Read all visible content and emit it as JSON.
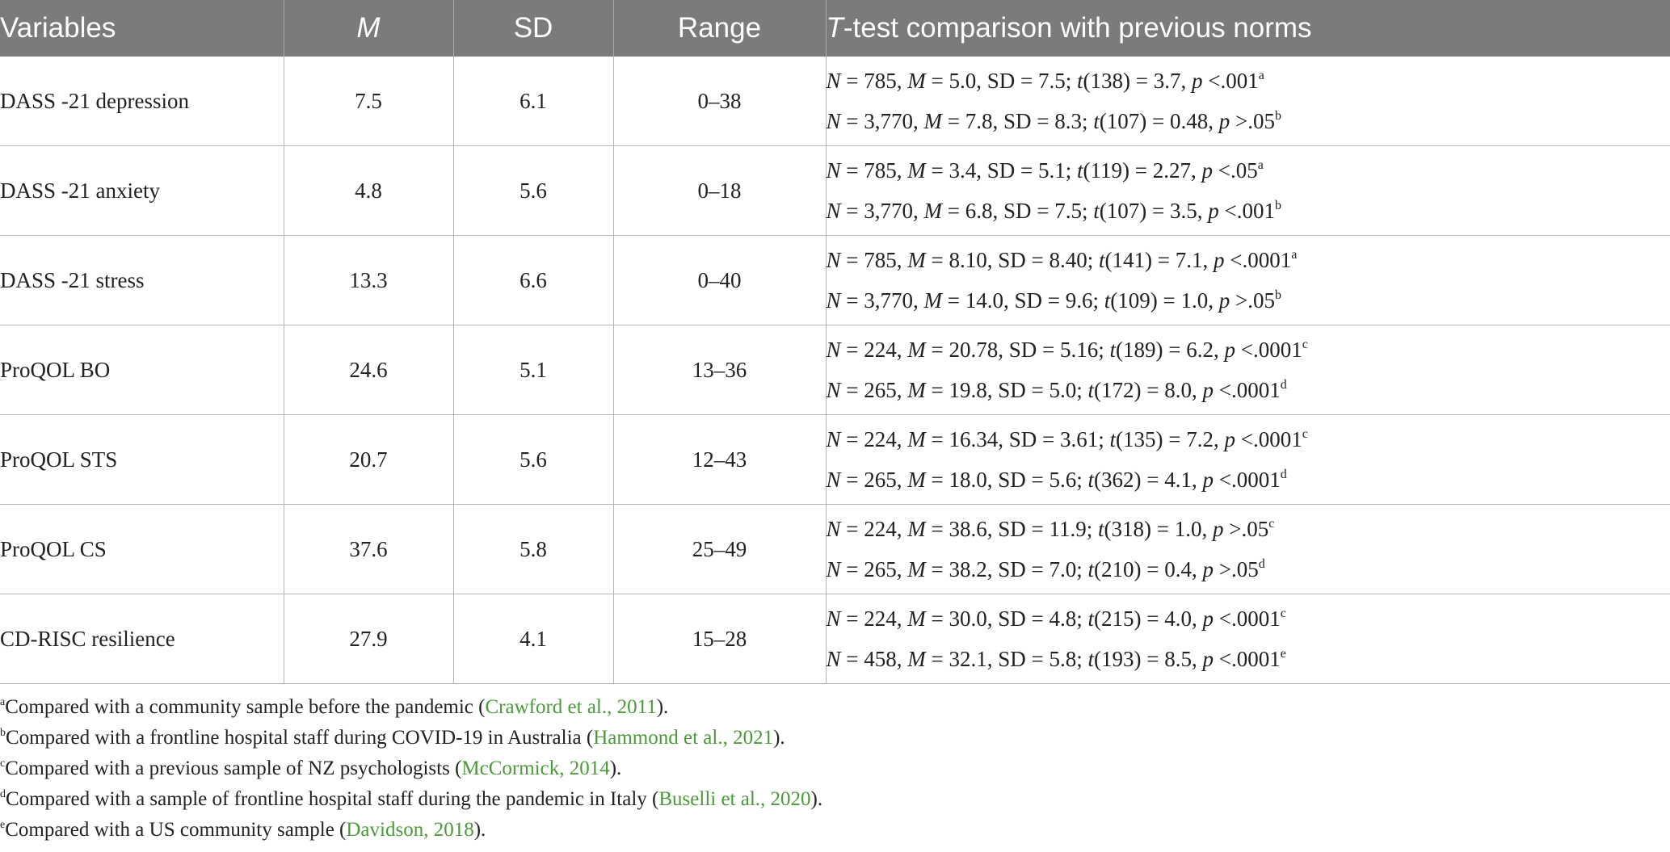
{
  "table": {
    "headers": {
      "variables": "Variables",
      "m": "M",
      "sd": "SD",
      "range": "Range",
      "comparison_italic": "T",
      "comparison_rest": "-test comparison with previous norms"
    },
    "rows": [
      {
        "variable": "DASS -21 depression",
        "m": "7.5",
        "sd": "6.1",
        "range": "0–38",
        "c1": {
          "n": "785",
          "mv": "5.0",
          "sd": "7.5",
          "df": "138",
          "tv": "3.7",
          "pp": "<.001",
          "sup": "a"
        },
        "c2": {
          "n": "3,770",
          "mv": "7.8",
          "sd": "8.3",
          "df": "107",
          "tv": "0.48",
          "pp": ">.05",
          "sup": "b"
        }
      },
      {
        "variable": "DASS -21 anxiety",
        "m": "4.8",
        "sd": "5.6",
        "range": "0–18",
        "c1": {
          "n": "785",
          "mv": "3.4",
          "sd": "5.1",
          "df": "119",
          "tv": "2.27",
          "pp": "<.05",
          "sup": "a"
        },
        "c2": {
          "n": "3,770",
          "mv": "6.8",
          "sd": "7.5",
          "df": "107",
          "tv": "3.5",
          "pp": "<.001",
          "sup": "b"
        }
      },
      {
        "variable": "DASS -21 stress",
        "m": "13.3",
        "sd": "6.6",
        "range": "0–40",
        "c1": {
          "n": "785",
          "mv": "8.10",
          "sd": "8.40",
          "df": "141",
          "tv": "7.1",
          "pp": "<.0001",
          "sup": "a"
        },
        "c2": {
          "n": "3,770",
          "mv": "14.0",
          "sd": "9.6",
          "df": "109",
          "tv": "1.0",
          "pp": ">.05",
          "sup": "b"
        }
      },
      {
        "variable": "ProQOL BO",
        "m": "24.6",
        "sd": "5.1",
        "range": "13–36",
        "c1": {
          "n": "224",
          "mv": "20.78",
          "sd": "5.16",
          "df": "189",
          "tv": "6.2",
          "pp": "<.0001",
          "sup": "c"
        },
        "c2": {
          "n": "265",
          "mv": "19.8",
          "sd": "5.0",
          "df": "172",
          "tv": "8.0",
          "pp": "<.0001",
          "sup": "d"
        }
      },
      {
        "variable": "ProQOL STS",
        "m": "20.7",
        "sd": "5.6",
        "range": "12–43",
        "c1": {
          "n": "224",
          "mv": "16.34",
          "sd": "3.61",
          "df": "135",
          "tv": "7.2",
          "pp": "<.0001",
          "sup": "c"
        },
        "c2": {
          "n": "265",
          "mv": "18.0",
          "sd": "5.6",
          "df": "362",
          "tv": "4.1",
          "pp": "<.0001",
          "sup": "d"
        }
      },
      {
        "variable": "ProQOL CS",
        "m": "37.6",
        "sd": "5.8",
        "range": "25–49",
        "c1": {
          "n": "224",
          "mv": "38.6",
          "sd": "11.9",
          "df": "318",
          "tv": "1.0",
          "pp": ">.05",
          "sup": "c"
        },
        "c2": {
          "n": "265",
          "mv": "38.2",
          "sd": "7.0",
          "df": "210",
          "tv": "0.4",
          "pp": ">.05",
          "sup": "d"
        }
      },
      {
        "variable": "CD-RISC resilience",
        "m": "27.9",
        "sd": "4.1",
        "range": "15–28",
        "c1": {
          "n": "224",
          "mv": "30.0",
          "sd": "4.8",
          "df": "215",
          "tv": "4.0",
          "pp": "<.0001",
          "sup": "c"
        },
        "c2": {
          "n": "458",
          "mv": "32.1",
          "sd": "5.8",
          "df": "193",
          "tv": "8.5",
          "pp": "<.0001",
          "sup": "e"
        }
      }
    ]
  },
  "footnotes": [
    {
      "sup": "a",
      "text": "Compared with a community sample before the pandemic (",
      "ref": "Crawford et al., 2011",
      "end": ")."
    },
    {
      "sup": "b",
      "text": "Compared with a frontline hospital staff during COVID-19 in Australia (",
      "ref": "Hammond et al., 2021",
      "end": ")."
    },
    {
      "sup": "c",
      "text": "Compared with a previous sample of NZ psychologists (",
      "ref": "McCormick, 2014",
      "end": ")."
    },
    {
      "sup": "d",
      "text": "Compared with a sample of frontline hospital staff during the pandemic in Italy (",
      "ref": "Buselli et al., 2020",
      "end": ")."
    },
    {
      "sup": "e",
      "text": "Compared with a US community sample (",
      "ref": "Davidson, 2018",
      "end": ")."
    }
  ],
  "colors": {
    "header_bg": "#7b7b7b",
    "header_text": "#ffffff",
    "link": "#4a9a3a"
  }
}
